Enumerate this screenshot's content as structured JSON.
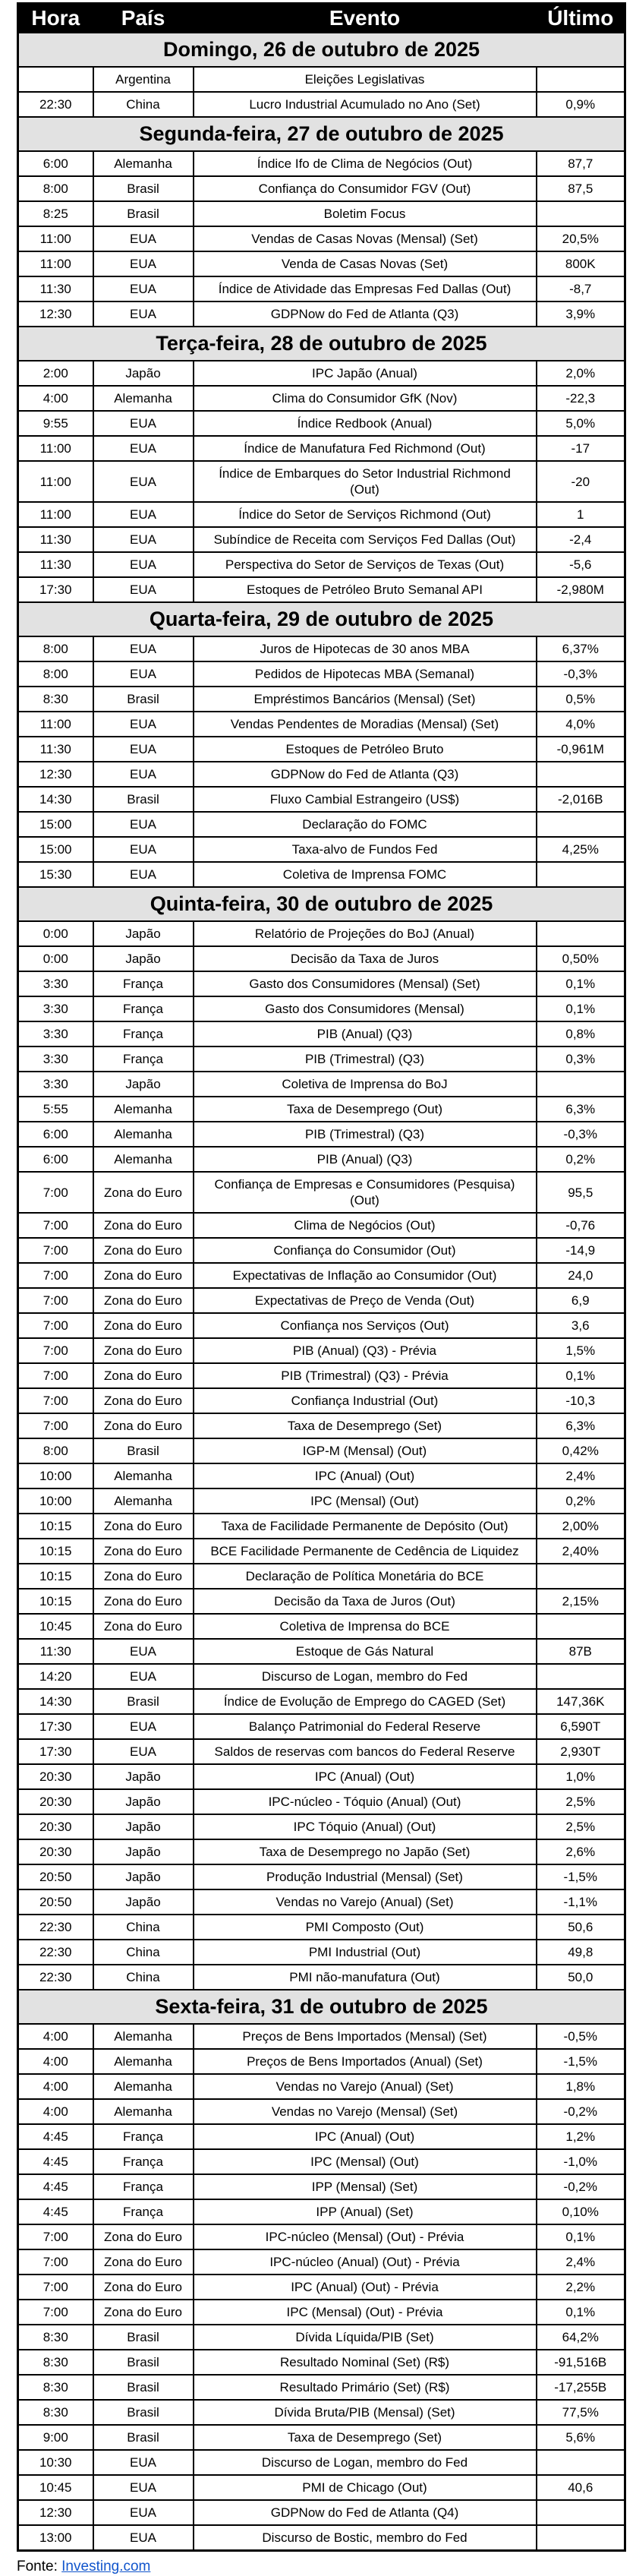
{
  "colors": {
    "header_bg": "#000000",
    "header_text": "#ffffff",
    "day_header_bg": "#e2e2e2",
    "link": "#1155cc"
  },
  "table": {
    "columns": [
      "Hora",
      "País",
      "Evento",
      "Último"
    ],
    "days": [
      {
        "title": "Domingo, 26 de outubro de 2025",
        "rows": [
          {
            "time": "",
            "country": "Argentina",
            "event": "Eleições Legislativas",
            "value": ""
          },
          {
            "time": "22:30",
            "country": "China",
            "event": "Lucro Industrial Acumulado no Ano (Set)",
            "value": "0,9%"
          }
        ]
      },
      {
        "title": "Segunda-feira, 27 de outubro de 2025",
        "rows": [
          {
            "time": "6:00",
            "country": "Alemanha",
            "event": "Índice Ifo de Clima de Negócios (Out)",
            "value": "87,7"
          },
          {
            "time": "8:00",
            "country": "Brasil",
            "event": "Confiança do Consumidor FGV (Out)",
            "value": "87,5"
          },
          {
            "time": "8:25",
            "country": "Brasil",
            "event": "Boletim Focus",
            "value": ""
          },
          {
            "time": "11:00",
            "country": "EUA",
            "event": "Vendas de Casas Novas (Mensal) (Set)",
            "value": "20,5%"
          },
          {
            "time": "11:00",
            "country": "EUA",
            "event": "Venda de Casas Novas (Set)",
            "value": "800K"
          },
          {
            "time": "11:30",
            "country": "EUA",
            "event": "Índice de Atividade das Empresas Fed Dallas (Out)",
            "value": "-8,7"
          },
          {
            "time": "12:30",
            "country": "EUA",
            "event": "GDPNow do Fed de Atlanta (Q3)",
            "value": "3,9%"
          }
        ]
      },
      {
        "title": "Terça-feira, 28 de outubro de 2025",
        "rows": [
          {
            "time": "2:00",
            "country": "Japão",
            "event": "IPC Japão (Anual)",
            "value": "2,0%"
          },
          {
            "time": "4:00",
            "country": "Alemanha",
            "event": "Clima do Consumidor GfK (Nov)",
            "value": "-22,3"
          },
          {
            "time": "9:55",
            "country": "EUA",
            "event": "Índice Redbook (Anual)",
            "value": "5,0%"
          },
          {
            "time": "11:00",
            "country": "EUA",
            "event": "Índice de Manufatura Fed Richmond (Out)",
            "value": "-17"
          },
          {
            "time": "11:00",
            "country": "EUA",
            "event": "Índice de Embarques do Setor Industrial Richmond\n(Out)",
            "value": "-20"
          },
          {
            "time": "11:00",
            "country": "EUA",
            "event": "Índice do Setor de Serviços Richmond (Out)",
            "value": "1"
          },
          {
            "time": "11:30",
            "country": "EUA",
            "event": "Subíndice de Receita com Serviços Fed Dallas (Out)",
            "value": "-2,4"
          },
          {
            "time": "11:30",
            "country": "EUA",
            "event": "Perspectiva do Setor de Serviços de Texas (Out)",
            "value": "-5,6"
          },
          {
            "time": "17:30",
            "country": "EUA",
            "event": "Estoques de Petróleo Bruto Semanal API",
            "value": "-2,980M"
          }
        ]
      },
      {
        "title": "Quarta-feira, 29 de outubro de 2025",
        "rows": [
          {
            "time": "8:00",
            "country": "EUA",
            "event": "Juros de Hipotecas de 30 anos MBA",
            "value": "6,37%"
          },
          {
            "time": "8:00",
            "country": "EUA",
            "event": "Pedidos de Hipotecas MBA (Semanal)",
            "value": "-0,3%"
          },
          {
            "time": "8:30",
            "country": "Brasil",
            "event": "Empréstimos Bancários (Mensal) (Set)",
            "value": "0,5%"
          },
          {
            "time": "11:00",
            "country": "EUA",
            "event": "Vendas Pendentes de Moradias (Mensal) (Set)",
            "value": "4,0%"
          },
          {
            "time": "11:30",
            "country": "EUA",
            "event": "Estoques de Petróleo Bruto",
            "value": "-0,961M"
          },
          {
            "time": "12:30",
            "country": "EUA",
            "event": "GDPNow do Fed de Atlanta (Q3)",
            "value": ""
          },
          {
            "time": "14:30",
            "country": "Brasil",
            "event": "Fluxo Cambial Estrangeiro (US$)",
            "value": "-2,016B"
          },
          {
            "time": "15:00",
            "country": "EUA",
            "event": "Declaração do FOMC",
            "value": ""
          },
          {
            "time": "15:00",
            "country": "EUA",
            "event": "Taxa-alvo de Fundos Fed",
            "value": "4,25%"
          },
          {
            "time": "15:30",
            "country": "EUA",
            "event": "Coletiva de Imprensa FOMC",
            "value": ""
          }
        ]
      },
      {
        "title": "Quinta-feira, 30 de outubro de 2025",
        "rows": [
          {
            "time": "0:00",
            "country": "Japão",
            "event": "Relatório de Projeções do BoJ (Anual)",
            "value": ""
          },
          {
            "time": "0:00",
            "country": "Japão",
            "event": "Decisão da Taxa de Juros",
            "value": "0,50%"
          },
          {
            "time": "3:30",
            "country": "França",
            "event": "Gasto dos Consumidores (Mensal) (Set)",
            "value": "0,1%"
          },
          {
            "time": "3:30",
            "country": "França",
            "event": "Gasto dos Consumidores (Mensal)",
            "value": "0,1%"
          },
          {
            "time": "3:30",
            "country": "França",
            "event": "PIB (Anual) (Q3)",
            "value": "0,8%"
          },
          {
            "time": "3:30",
            "country": "França",
            "event": "PIB (Trimestral) (Q3)",
            "value": "0,3%"
          },
          {
            "time": "3:30",
            "country": "Japão",
            "event": "Coletiva de Imprensa do BoJ",
            "value": ""
          },
          {
            "time": "5:55",
            "country": "Alemanha",
            "event": "Taxa de Desemprego (Out)",
            "value": "6,3%"
          },
          {
            "time": "6:00",
            "country": "Alemanha",
            "event": "PIB (Trimestral) (Q3)",
            "value": "-0,3%"
          },
          {
            "time": "6:00",
            "country": "Alemanha",
            "event": "PIB (Anual) (Q3)",
            "value": "0,2%"
          },
          {
            "time": "7:00",
            "country": "Zona do Euro",
            "event": "Confiança de Empresas e Consumidores (Pesquisa)\n(Out)",
            "value": "95,5"
          },
          {
            "time": "7:00",
            "country": "Zona do Euro",
            "event": "Clima de Negócios (Out)",
            "value": "-0,76"
          },
          {
            "time": "7:00",
            "country": "Zona do Euro",
            "event": "Confiança do Consumidor (Out)",
            "value": "-14,9"
          },
          {
            "time": "7:00",
            "country": "Zona do Euro",
            "event": "Expectativas de Inflação ao Consumidor (Out)",
            "value": "24,0"
          },
          {
            "time": "7:00",
            "country": "Zona do Euro",
            "event": "Expectativas de Preço de Venda (Out)",
            "value": "6,9"
          },
          {
            "time": "7:00",
            "country": "Zona do Euro",
            "event": "Confiança nos Serviços (Out)",
            "value": "3,6"
          },
          {
            "time": "7:00",
            "country": "Zona do Euro",
            "event": "PIB (Anual) (Q3) - Prévia",
            "value": "1,5%"
          },
          {
            "time": "7:00",
            "country": "Zona do Euro",
            "event": "PIB (Trimestral) (Q3) - Prévia",
            "value": "0,1%"
          },
          {
            "time": "7:00",
            "country": "Zona do Euro",
            "event": "Confiança Industrial (Out)",
            "value": "-10,3"
          },
          {
            "time": "7:00",
            "country": "Zona do Euro",
            "event": "Taxa de Desemprego (Set)",
            "value": "6,3%"
          },
          {
            "time": "8:00",
            "country": "Brasil",
            "event": "IGP-M (Mensal) (Out)",
            "value": "0,42%"
          },
          {
            "time": "10:00",
            "country": "Alemanha",
            "event": "IPC (Anual) (Out)",
            "value": "2,4%"
          },
          {
            "time": "10:00",
            "country": "Alemanha",
            "event": "IPC (Mensal) (Out)",
            "value": "0,2%"
          },
          {
            "time": "10:15",
            "country": "Zona do Euro",
            "event": "Taxa de Facilidade Permanente de Depósito (Out)",
            "value": "2,00%"
          },
          {
            "time": "10:15",
            "country": "Zona do Euro",
            "event": "BCE Facilidade Permanente de Cedência de Liquidez",
            "value": "2,40%"
          },
          {
            "time": "10:15",
            "country": "Zona do Euro",
            "event": "Declaração de Política Monetária do BCE",
            "value": ""
          },
          {
            "time": "10:15",
            "country": "Zona do Euro",
            "event": "Decisão da Taxa de Juros (Out)",
            "value": "2,15%"
          },
          {
            "time": "10:45",
            "country": "Zona do Euro",
            "event": "Coletiva de Imprensa do BCE",
            "value": ""
          },
          {
            "time": "11:30",
            "country": "EUA",
            "event": "Estoque de Gás Natural",
            "value": "87B"
          },
          {
            "time": "14:20",
            "country": "EUA",
            "event": "Discurso de Logan, membro do Fed",
            "value": ""
          },
          {
            "time": "14:30",
            "country": "Brasil",
            "event": "Índice de Evolução de Emprego do CAGED (Set)",
            "value": "147,36K"
          },
          {
            "time": "17:30",
            "country": "EUA",
            "event": "Balanço Patrimonial do Federal Reserve",
            "value": "6,590T"
          },
          {
            "time": "17:30",
            "country": "EUA",
            "event": "Saldos de reservas com bancos do Federal Reserve",
            "value": "2,930T"
          },
          {
            "time": "20:30",
            "country": "Japão",
            "event": "IPC (Anual) (Out)",
            "value": "1,0%"
          },
          {
            "time": "20:30",
            "country": "Japão",
            "event": "IPC-núcleo - Tóquio (Anual) (Out)",
            "value": "2,5%"
          },
          {
            "time": "20:30",
            "country": "Japão",
            "event": "IPC Tóquio (Anual) (Out)",
            "value": "2,5%"
          },
          {
            "time": "20:30",
            "country": "Japão",
            "event": "Taxa de Desemprego no Japão (Set)",
            "value": "2,6%"
          },
          {
            "time": "20:50",
            "country": "Japão",
            "event": "Produção Industrial (Mensal) (Set)",
            "value": "-1,5%"
          },
          {
            "time": "20:50",
            "country": "Japão",
            "event": "Vendas no Varejo (Anual) (Set)",
            "value": "-1,1%"
          },
          {
            "time": "22:30",
            "country": "China",
            "event": "PMI Composto (Out)",
            "value": "50,6"
          },
          {
            "time": "22:30",
            "country": "China",
            "event": "PMI Industrial (Out)",
            "value": "49,8"
          },
          {
            "time": "22:30",
            "country": "China",
            "event": "PMI não-manufatura (Out)",
            "value": "50,0"
          }
        ]
      },
      {
        "title": "Sexta-feira, 31 de outubro de 2025",
        "rows": [
          {
            "time": "4:00",
            "country": "Alemanha",
            "event": "Preços de Bens Importados (Mensal) (Set)",
            "value": "-0,5%"
          },
          {
            "time": "4:00",
            "country": "Alemanha",
            "event": "Preços de Bens Importados (Anual) (Set)",
            "value": "-1,5%"
          },
          {
            "time": "4:00",
            "country": "Alemanha",
            "event": "Vendas no Varejo (Anual) (Set)",
            "value": "1,8%"
          },
          {
            "time": "4:00",
            "country": "Alemanha",
            "event": "Vendas no Varejo (Mensal) (Set)",
            "value": "-0,2%"
          },
          {
            "time": "4:45",
            "country": "França",
            "event": "IPC (Anual) (Out)",
            "value": "1,2%"
          },
          {
            "time": "4:45",
            "country": "França",
            "event": "IPC (Mensal) (Out)",
            "value": "-1,0%"
          },
          {
            "time": "4:45",
            "country": "França",
            "event": "IPP (Mensal) (Set)",
            "value": "-0,2%"
          },
          {
            "time": "4:45",
            "country": "França",
            "event": "IPP (Anual) (Set)",
            "value": "0,10%"
          },
          {
            "time": "7:00",
            "country": "Zona do Euro",
            "event": "IPC-núcleo (Mensal) (Out) - Prévia",
            "value": "0,1%"
          },
          {
            "time": "7:00",
            "country": "Zona do Euro",
            "event": "IPC-núcleo (Anual) (Out) - Prévia",
            "value": "2,4%"
          },
          {
            "time": "7:00",
            "country": "Zona do Euro",
            "event": "IPC (Anual) (Out) - Prévia",
            "value": "2,2%"
          },
          {
            "time": "7:00",
            "country": "Zona do Euro",
            "event": "IPC (Mensal) (Out) - Prévia",
            "value": "0,1%"
          },
          {
            "time": "8:30",
            "country": "Brasil",
            "event": "Dívida Líquida/PIB (Set)",
            "value": "64,2%"
          },
          {
            "time": "8:30",
            "country": "Brasil",
            "event": "Resultado Nominal (Set) (R$)",
            "value": "-91,516B"
          },
          {
            "time": "8:30",
            "country": "Brasil",
            "event": "Resultado Primário (Set) (R$)",
            "value": "-17,255B"
          },
          {
            "time": "8:30",
            "country": "Brasil",
            "event": "Dívida Bruta/PIB (Mensal) (Set)",
            "value": "77,5%"
          },
          {
            "time": "9:00",
            "country": "Brasil",
            "event": "Taxa de Desemprego (Set)",
            "value": "5,6%"
          },
          {
            "time": "10:30",
            "country": "EUA",
            "event": "Discurso de Logan, membro do Fed",
            "value": ""
          },
          {
            "time": "10:45",
            "country": "EUA",
            "event": "PMI de Chicago (Out)",
            "value": "40,6"
          },
          {
            "time": "12:30",
            "country": "EUA",
            "event": "GDPNow do Fed de Atlanta (Q4)",
            "value": ""
          },
          {
            "time": "13:00",
            "country": "EUA",
            "event": "Discurso de Bostic, membro do Fed",
            "value": ""
          }
        ]
      }
    ]
  },
  "footer": {
    "label": "Fonte: ",
    "link_text": "Investing.com"
  }
}
